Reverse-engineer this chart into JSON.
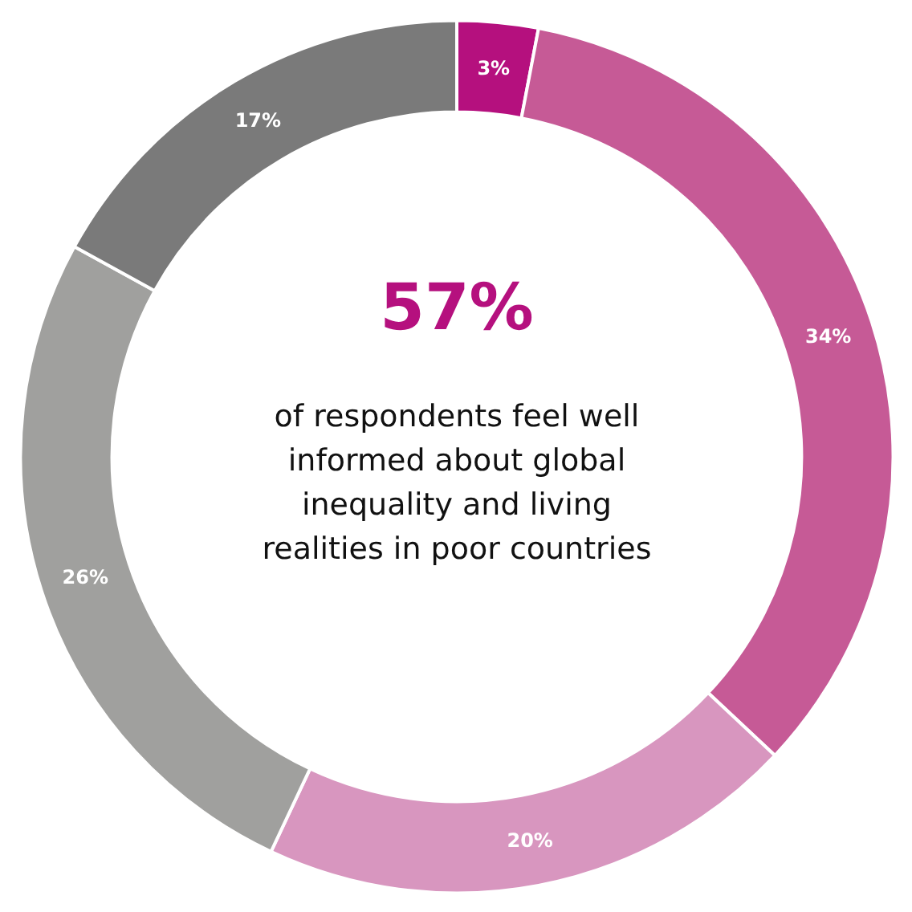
{
  "chart_data": {
    "type": "donut",
    "categories": [
      null,
      null,
      null,
      null,
      null
    ],
    "values": [
      3,
      34,
      20,
      26,
      17
    ],
    "colors": [
      "#b5107e",
      "#c65a96",
      "#d896bf",
      "#a0a09e",
      "#7a7a7a"
    ],
    "value_labels": [
      "3%",
      "34%",
      "20%",
      "26%",
      "17%"
    ],
    "annotations": [
      "57%",
      "of respondents feel well\ninformed about global\ninequality and living\nrealities in poor countries"
    ]
  }
}
